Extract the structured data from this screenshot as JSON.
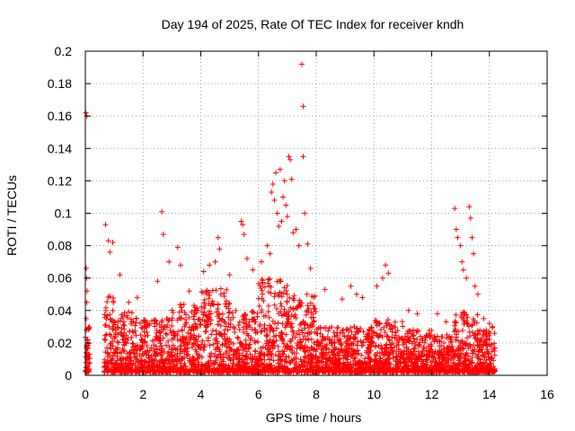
{
  "chart_data": {
    "type": "scatter",
    "title": "Day 194 of 2025, Rate Of TEC Index for receiver kndh",
    "xlabel": "GPS time / hours",
    "ylabel": "ROTI / TECUs",
    "xlim": [
      0,
      16
    ],
    "ylim": [
      0,
      0.2
    ],
    "x_ticks": [
      0,
      2,
      4,
      6,
      8,
      10,
      12,
      14,
      16
    ],
    "y_ticks": [
      0,
      0.02,
      0.04,
      0.06,
      0.08,
      0.1,
      0.12,
      0.14,
      0.16,
      0.18,
      0.2
    ],
    "x_tick_labels": [
      "0",
      "2",
      "4",
      "6",
      "8",
      "10",
      "12",
      "14",
      "16"
    ],
    "y_tick_labels": [
      "0",
      "0.02",
      "0.04",
      "0.06",
      "0.08",
      "0.1",
      "0.12",
      "0.14",
      "0.16",
      "0.18",
      "0.2"
    ],
    "grid": true,
    "marker": "plus",
    "color": "#ff0000",
    "series": [
      {
        "name": "ROTI",
        "points": [
          [
            0.02,
            0.162
          ],
          [
            0.05,
            0.16
          ],
          [
            0.03,
            0.066
          ],
          [
            0.04,
            0.06
          ],
          [
            0.06,
            0.052
          ],
          [
            0.05,
            0.045
          ],
          [
            0.03,
            0.035
          ],
          [
            0.04,
            0.028
          ],
          [
            0.06,
            0.022
          ],
          [
            0.05,
            0.018
          ],
          [
            0.07,
            0.012
          ],
          [
            0.03,
            0.008
          ],
          [
            0.05,
            0.005
          ],
          [
            0.7,
            0.093
          ],
          [
            0.8,
            0.083
          ],
          [
            0.85,
            0.076
          ],
          [
            0.95,
            0.082
          ],
          [
            1.2,
            0.062
          ],
          [
            1.5,
            0.045
          ],
          [
            1.8,
            0.048
          ],
          [
            2.5,
            0.058
          ],
          [
            2.65,
            0.101
          ],
          [
            2.7,
            0.087
          ],
          [
            2.9,
            0.07
          ],
          [
            3.2,
            0.079
          ],
          [
            3.3,
            0.068
          ],
          [
            3.6,
            0.052
          ],
          [
            4.1,
            0.064
          ],
          [
            4.3,
            0.068
          ],
          [
            4.5,
            0.07
          ],
          [
            4.6,
            0.085
          ],
          [
            4.65,
            0.078
          ],
          [
            5.0,
            0.062
          ],
          [
            5.4,
            0.095
          ],
          [
            5.45,
            0.093
          ],
          [
            5.5,
            0.087
          ],
          [
            5.6,
            0.072
          ],
          [
            5.8,
            0.065
          ],
          [
            6.1,
            0.07
          ],
          [
            6.3,
            0.08
          ],
          [
            6.4,
            0.075
          ],
          [
            6.45,
            0.113
          ],
          [
            6.5,
            0.118
          ],
          [
            6.55,
            0.108
          ],
          [
            6.6,
            0.125
          ],
          [
            6.65,
            0.1
          ],
          [
            6.7,
            0.092
          ],
          [
            6.75,
            0.127
          ],
          [
            6.8,
            0.095
          ],
          [
            6.85,
            0.11
          ],
          [
            6.9,
            0.12
          ],
          [
            6.95,
            0.105
          ],
          [
            7.0,
            0.098
          ],
          [
            7.05,
            0.135
          ],
          [
            7.1,
            0.133
          ],
          [
            7.15,
            0.121
          ],
          [
            7.2,
            0.088
          ],
          [
            7.3,
            0.09
          ],
          [
            7.4,
            0.08
          ],
          [
            7.5,
            0.192
          ],
          [
            7.55,
            0.166
          ],
          [
            7.55,
            0.135
          ],
          [
            7.6,
            0.1
          ],
          [
            7.7,
            0.081
          ],
          [
            7.8,
            0.066
          ],
          [
            8.3,
            0.053
          ],
          [
            8.9,
            0.047
          ],
          [
            9.2,
            0.055
          ],
          [
            9.4,
            0.05
          ],
          [
            9.6,
            0.048
          ],
          [
            10.1,
            0.055
          ],
          [
            10.3,
            0.06
          ],
          [
            10.4,
            0.068
          ],
          [
            10.5,
            0.063
          ],
          [
            11.2,
            0.04
          ],
          [
            11.5,
            0.038
          ],
          [
            12.2,
            0.038
          ],
          [
            12.5,
            0.033
          ],
          [
            12.8,
            0.103
          ],
          [
            12.85,
            0.09
          ],
          [
            12.9,
            0.085
          ],
          [
            13.0,
            0.08
          ],
          [
            13.05,
            0.07
          ],
          [
            13.1,
            0.065
          ],
          [
            13.2,
            0.06
          ],
          [
            13.3,
            0.104
          ],
          [
            13.35,
            0.097
          ],
          [
            13.4,
            0.085
          ],
          [
            13.45,
            0.075
          ],
          [
            13.5,
            0.055
          ],
          [
            13.6,
            0.05
          ],
          [
            13.8,
            0.035
          ],
          [
            14.0,
            0.032
          ],
          [
            14.1,
            0.03
          ]
        ]
      }
    ],
    "dense_envelope": {
      "description": "Dense band of ROTI samples",
      "segments": [
        {
          "x": [
            0.0,
            0.15
          ],
          "y_max": 0.03
        },
        {
          "x": [
            0.65,
            1.0
          ],
          "y_max": 0.05
        },
        {
          "x": [
            1.0,
            2.0
          ],
          "y_max": 0.04
        },
        {
          "x": [
            2.0,
            3.0
          ],
          "y_max": 0.035
        },
        {
          "x": [
            3.0,
            4.0
          ],
          "y_max": 0.045
        },
        {
          "x": [
            4.0,
            5.0
          ],
          "y_max": 0.055
        },
        {
          "x": [
            5.0,
            6.0
          ],
          "y_max": 0.04
        },
        {
          "x": [
            6.0,
            7.0
          ],
          "y_max": 0.06
        },
        {
          "x": [
            7.0,
            8.0
          ],
          "y_max": 0.05
        },
        {
          "x": [
            8.0,
            9.0
          ],
          "y_max": 0.03
        },
        {
          "x": [
            9.0,
            10.0
          ],
          "y_max": 0.03
        },
        {
          "x": [
            10.0,
            11.0
          ],
          "y_max": 0.035
        },
        {
          "x": [
            11.0,
            12.0
          ],
          "y_max": 0.028
        },
        {
          "x": [
            12.0,
            12.7
          ],
          "y_max": 0.025
        },
        {
          "x": [
            12.7,
            13.6
          ],
          "y_max": 0.04
        },
        {
          "x": [
            13.6,
            14.2
          ],
          "y_max": 0.03
        }
      ]
    }
  }
}
